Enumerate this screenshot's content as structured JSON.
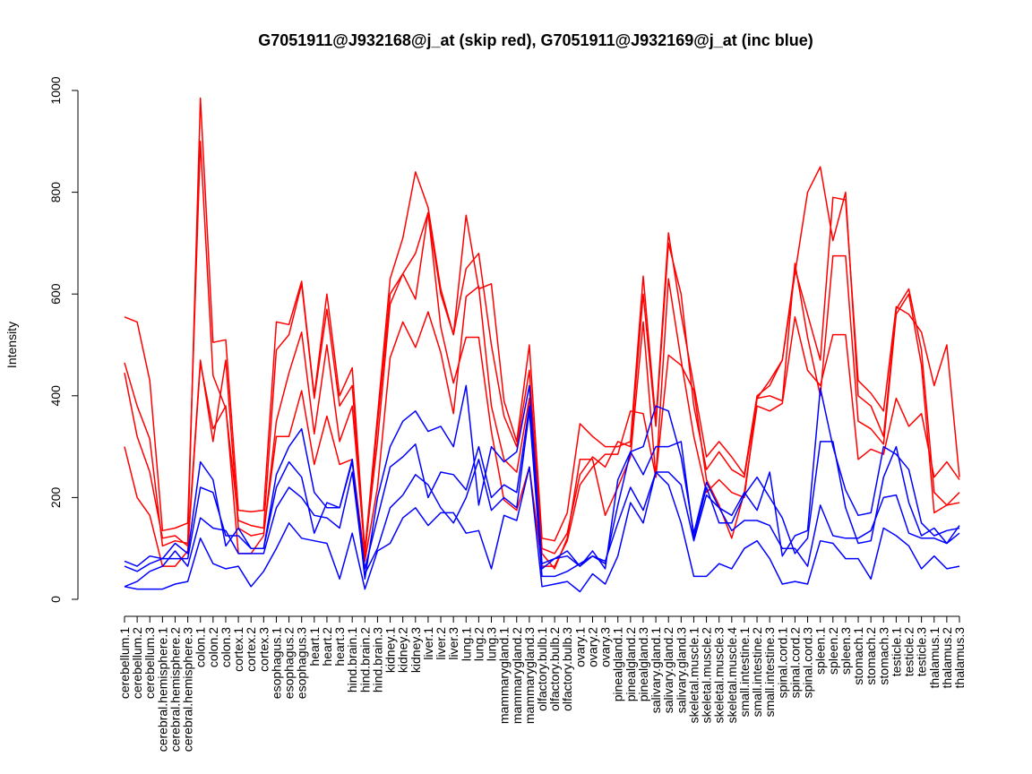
{
  "chart_data": {
    "type": "line",
    "title": "G7051911@J932168@j_at (skip red), G7051911@J932169@j_at (inc blue)",
    "xlabel": "",
    "ylabel": "Intensity",
    "ylim": [
      0,
      1000
    ],
    "yticks": [
      0,
      200,
      400,
      600,
      800,
      1000
    ],
    "grid": false,
    "legend": "none",
    "categories": [
      "cerebellum.1",
      "cerebellum.2",
      "cerebellum.3",
      "cerebral.hemisphere.1",
      "cerebral.hemisphere.2",
      "cerebral.hemisphere.3",
      "colon.1",
      "colon.2",
      "colon.3",
      "cortex.1",
      "cortex.2",
      "cortex.3",
      "esophagus.1",
      "esophagus.2",
      "esophagus.3",
      "heart.1",
      "heart.2",
      "heart.3",
      "hind.brain.1",
      "hind.brain.2",
      "hind.brain.3",
      "kidney.1",
      "kidney.2",
      "kidney.3",
      "liver.1",
      "liver.2",
      "liver.3",
      "lung.1",
      "lung.2",
      "lung.3",
      "mammarygland.1",
      "mammarygland.2",
      "mammarygland.3",
      "olfactory.bulb.1",
      "olfactory.bulb.2",
      "olfactory.bulb.3",
      "ovary.1",
      "ovary.2",
      "ovary.3",
      "pinealgland.1",
      "pinealgland.2",
      "pinealgland.3",
      "salivary.gland.1",
      "salivary.gland.2",
      "salivary.gland.3",
      "skeletal.muscle.1",
      "skeletal.muscle.2",
      "skeletal.muscle.3",
      "skeletal.muscle.4",
      "small.intestine.1",
      "small.intestine.2",
      "small.intestine.3",
      "spinal.cord.1",
      "spinal.cord.2",
      "spinal.cord.3",
      "spleen.1",
      "spleen.2",
      "spleen.3",
      "stomach.1",
      "stomach.2",
      "stomach.3",
      "testicle.1",
      "testicle.2",
      "testicle.3",
      "thalamus.1",
      "thalamus.2",
      "thalamus.3"
    ],
    "series": [
      {
        "color": "#ff0000",
        "values": [
          465,
          380,
          315,
          105,
          115,
          110,
          985,
          505,
          510,
          175,
          172,
          175,
          545,
          540,
          625,
          400,
          600,
          400,
          455,
          95,
          360,
          630,
          710,
          840,
          770,
          610,
          520,
          755,
          610,
          620,
          390,
          310,
          500,
          120,
          115,
          170,
          345,
          320,
          300,
          300,
          310,
          635,
          350,
          720,
          560,
          420,
          280,
          310,
          280,
          245,
          400,
          420,
          470,
          650,
          560,
          470,
          790,
          785,
          430,
          405,
          370,
          575,
          560,
          525,
          420,
          500,
          240
        ]
      },
      {
        "color": "#ff0000",
        "values": [
          555,
          545,
          430,
          135,
          140,
          150,
          900,
          440,
          375,
          155,
          145,
          140,
          490,
          520,
          620,
          395,
          570,
          380,
          420,
          85,
          345,
          600,
          640,
          590,
          760,
          600,
          520,
          650,
          680,
          500,
          360,
          300,
          450,
          100,
          90,
          130,
          245,
          280,
          260,
          310,
          300,
          600,
          340,
          700,
          600,
          380,
          255,
          290,
          255,
          240,
          395,
          430,
          470,
          640,
          800,
          850,
          705,
          800,
          400,
          380,
          320,
          570,
          610,
          490,
          210,
          185,
          210
        ]
      },
      {
        "color": "#ff0000",
        "values": [
          445,
          320,
          250,
          120,
          125,
          105,
          470,
          310,
          470,
          140,
          125,
          130,
          320,
          320,
          410,
          265,
          360,
          265,
          275,
          75,
          220,
          475,
          545,
          495,
          565,
          485,
          365,
          595,
          615,
          380,
          275,
          250,
          395,
          90,
          60,
          120,
          275,
          275,
          165,
          220,
          280,
          545,
          240,
          630,
          470,
          320,
          210,
          235,
          210,
          200,
          395,
          400,
          390,
          660,
          515,
          400,
          675,
          675,
          350,
          335,
          305,
          560,
          600,
          460,
          170,
          185,
          190
        ]
      },
      {
        "color": "#ff0000",
        "values": [
          300,
          200,
          165,
          65,
          65,
          95,
          465,
          335,
          380,
          90,
          90,
          125,
          350,
          445,
          525,
          325,
          500,
          310,
          380,
          95,
          310,
          580,
          640,
          680,
          760,
          535,
          425,
          515,
          515,
          330,
          195,
          175,
          260,
          65,
          65,
          115,
          225,
          260,
          285,
          285,
          370,
          365,
          240,
          480,
          460,
          410,
          235,
          185,
          120,
          210,
          380,
          370,
          385,
          555,
          450,
          420,
          520,
          520,
          275,
          295,
          285,
          395,
          340,
          365,
          240,
          270,
          235
        ]
      },
      {
        "color": "#0000ff",
        "values": [
          75,
          65,
          85,
          80,
          110,
          90,
          270,
          235,
          105,
          140,
          100,
          100,
          245,
          300,
          335,
          210,
          180,
          180,
          275,
          40,
          200,
          300,
          350,
          370,
          330,
          340,
          300,
          420,
          185,
          300,
          270,
          290,
          420,
          70,
          80,
          95,
          65,
          95,
          60,
          235,
          290,
          300,
          380,
          370,
          280,
          130,
          230,
          180,
          165,
          210,
          175,
          250,
          85,
          125,
          135,
          415,
          300,
          215,
          165,
          170,
          300,
          285,
          255,
          150,
          125,
          135,
          140
        ]
      },
      {
        "color": "#0000ff",
        "values": [
          65,
          55,
          70,
          80,
          80,
          80,
          220,
          210,
          125,
          125,
          100,
          100,
          220,
          270,
          240,
          130,
          190,
          180,
          270,
          60,
          160,
          260,
          280,
          305,
          200,
          250,
          245,
          215,
          300,
          200,
          225,
          210,
          380,
          60,
          80,
          85,
          65,
          85,
          70,
          185,
          290,
          245,
          300,
          300,
          310,
          120,
          220,
          150,
          150,
          205,
          240,
          200,
          160,
          90,
          120,
          310,
          310,
          180,
          110,
          115,
          240,
          300,
          190,
          125,
          140,
          110,
          145
        ]
      },
      {
        "color": "#0000ff",
        "values": [
          25,
          35,
          55,
          65,
          95,
          65,
          160,
          140,
          135,
          90,
          90,
          90,
          180,
          220,
          200,
          165,
          160,
          140,
          250,
          50,
          100,
          180,
          205,
          245,
          225,
          180,
          150,
          200,
          275,
          175,
          200,
          180,
          370,
          45,
          45,
          55,
          70,
          85,
          75,
          150,
          220,
          175,
          250,
          250,
          225,
          115,
          205,
          180,
          135,
          155,
          155,
          145,
          100,
          100,
          65,
          185,
          125,
          120,
          120,
          135,
          200,
          205,
          130,
          120,
          120,
          110,
          130
        ]
      },
      {
        "color": "#0000ff",
        "values": [
          25,
          20,
          20,
          20,
          30,
          35,
          120,
          70,
          60,
          65,
          25,
          55,
          100,
          150,
          120,
          115,
          110,
          40,
          130,
          20,
          95,
          110,
          160,
          180,
          145,
          170,
          170,
          130,
          135,
          60,
          165,
          155,
          260,
          25,
          30,
          35,
          15,
          50,
          30,
          85,
          190,
          150,
          250,
          225,
          150,
          45,
          45,
          70,
          60,
          100,
          115,
          80,
          30,
          35,
          30,
          115,
          110,
          80,
          80,
          40,
          140,
          125,
          105,
          60,
          85,
          60,
          65
        ]
      }
    ]
  }
}
